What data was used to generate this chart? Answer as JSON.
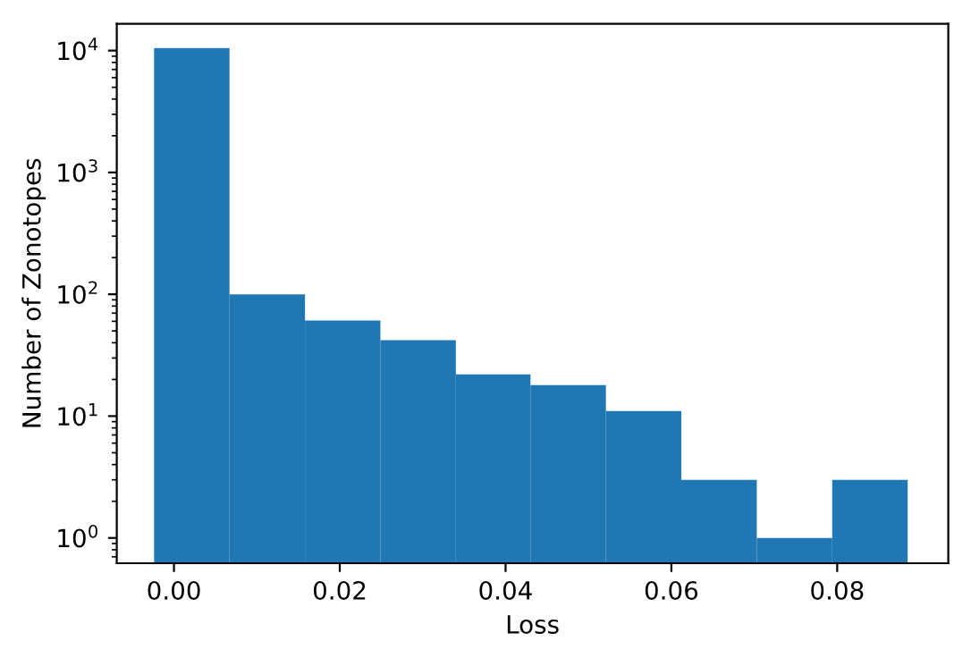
{
  "chart_data": {
    "type": "histogram",
    "xlabel": "Loss",
    "ylabel": "Number of Zonotopes",
    "log": "y",
    "color": "#1f77b4",
    "bins": [
      -0.0024,
      0.0067,
      0.0158,
      0.0249,
      0.034,
      0.043,
      0.0521,
      0.0612,
      0.0703,
      0.0794,
      0.0885
    ],
    "values": [
      10500,
      100,
      61,
      42,
      22,
      18,
      11,
      3,
      1,
      3
    ],
    "xlim": [
      -0.0069,
      0.0934
    ],
    "xticks": [
      {
        "value": 0,
        "label": "0.00"
      },
      {
        "value": 0.02,
        "label": "0.02"
      },
      {
        "value": 0.04,
        "label": "0.04"
      },
      {
        "value": 0.06,
        "label": "0.06"
      },
      {
        "value": 0.08,
        "label": "0.08"
      }
    ],
    "ylim": [
      0.62,
      16600
    ],
    "yticks": [
      {
        "value": 1,
        "label": "10$^{0}$"
      },
      {
        "value": 10,
        "label": "10$^{1}$"
      },
      {
        "value": 100,
        "label": "10$^{2}$"
      },
      {
        "value": 1000,
        "label": "10$^{3}$"
      },
      {
        "value": 10000,
        "label": "10$^{4}$"
      }
    ],
    "grid": false
  }
}
